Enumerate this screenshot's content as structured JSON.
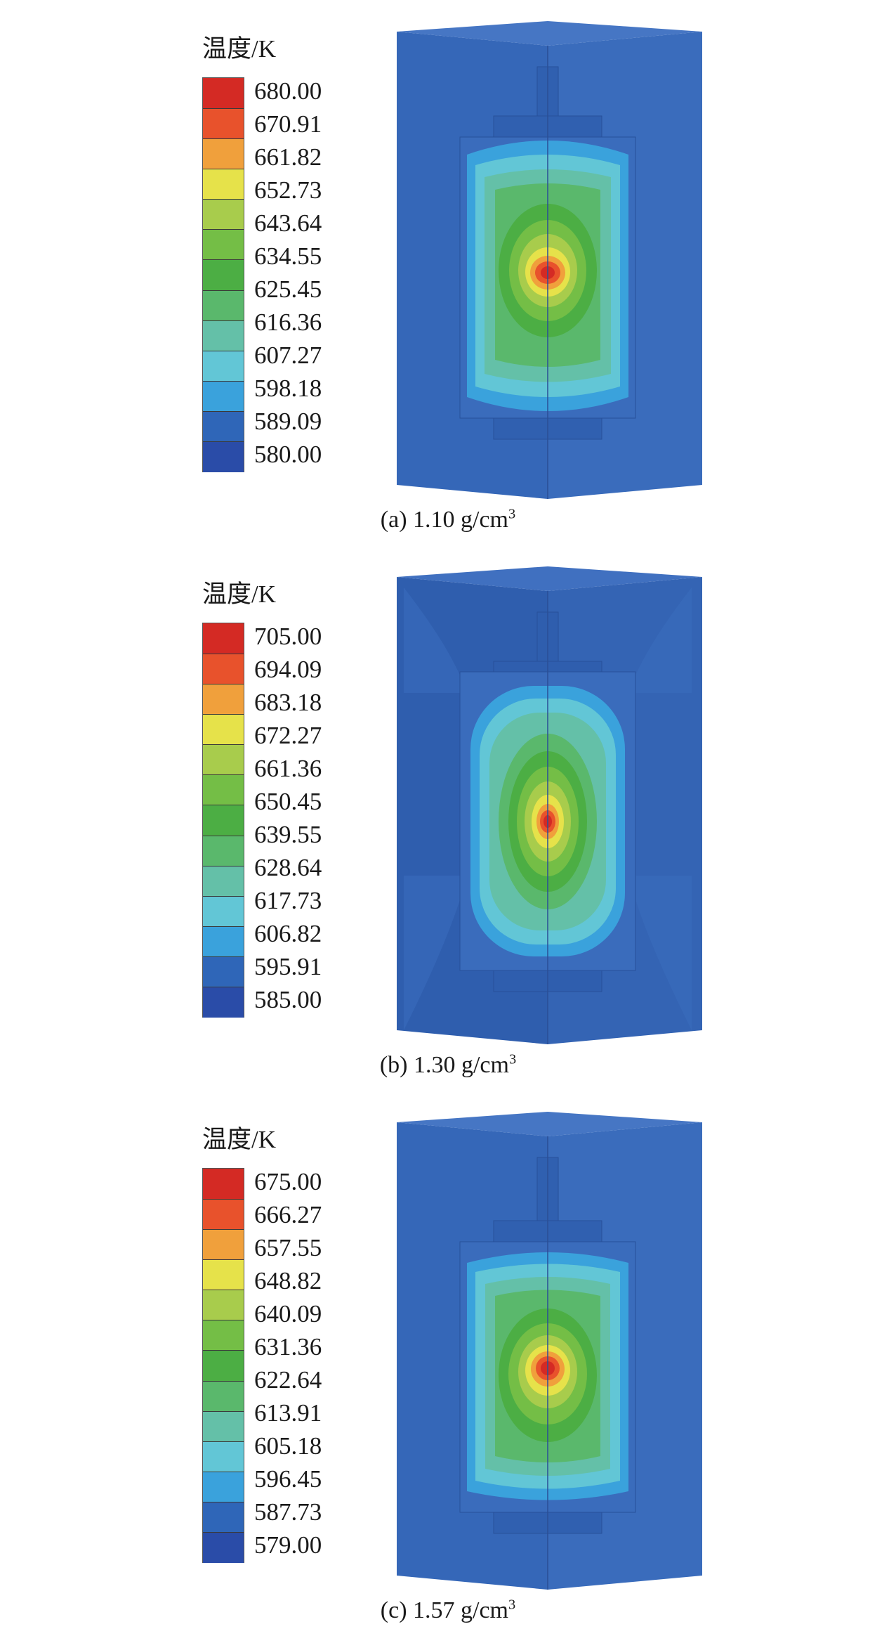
{
  "panels": [
    {
      "legend_title": "温度/K",
      "legend_values": [
        "680.00",
        "670.91",
        "661.82",
        "652.73",
        "643.64",
        "634.55",
        "625.45",
        "616.36",
        "607.27",
        "598.18",
        "589.09",
        "580.00"
      ],
      "caption_prefix": "(a) 1.10 g/cm",
      "caption_sup": "3"
    },
    {
      "legend_title": "温度/K",
      "legend_values": [
        "705.00",
        "694.09",
        "683.18",
        "672.27",
        "661.36",
        "650.45",
        "639.55",
        "628.64",
        "617.73",
        "606.82",
        "595.91",
        "585.00"
      ],
      "caption_prefix": "(b) 1.30 g/cm",
      "caption_sup": "3"
    },
    {
      "legend_title": "温度/K",
      "legend_values": [
        "675.00",
        "666.27",
        "657.55",
        "648.82",
        "640.09",
        "631.36",
        "622.64",
        "613.91",
        "605.18",
        "596.45",
        "587.73",
        "579.00"
      ],
      "caption_prefix": "(c) 1.57 g/cm",
      "caption_sup": "3"
    }
  ],
  "colors": {
    "scale": [
      "#d42a24",
      "#e8522c",
      "#f0a03c",
      "#e6e24a",
      "#a8cc4c",
      "#74be46",
      "#4cae44",
      "#5ab86c",
      "#64c0a8",
      "#62c6d6",
      "#3aa2dc",
      "#2f66b8",
      "#2a4ca8"
    ],
    "body": "#3567b8",
    "body_dark": "#2c58a6",
    "body_top": "#3f70c0"
  }
}
